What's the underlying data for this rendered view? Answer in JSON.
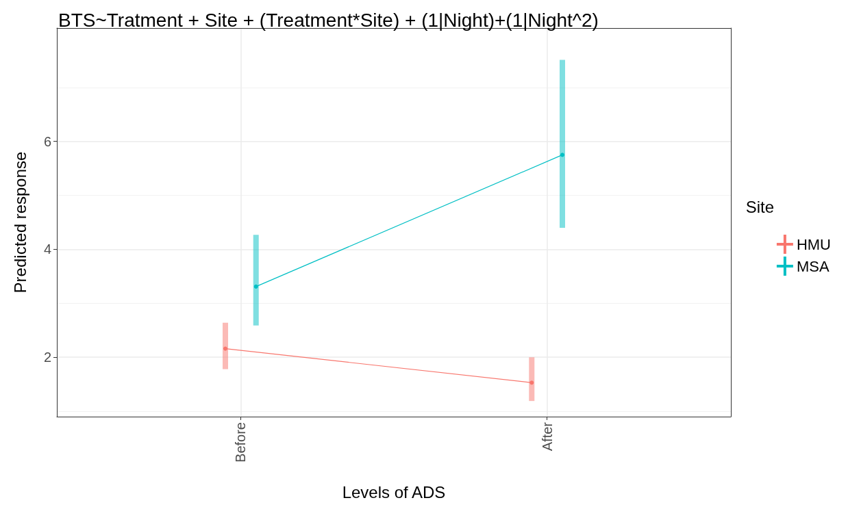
{
  "chart_data": {
    "type": "line",
    "title": "BTS~Tratment + Site + (Treatment*Site) + (1|Night)+(1|Night^2)",
    "xlabel": "Levels of ADS",
    "ylabel": "Predicted response",
    "legend_title": "Site",
    "categories": [
      "Before",
      "After"
    ],
    "series": [
      {
        "name": "HMU",
        "color": "#f8766d",
        "values": [
          2.16,
          1.53
        ],
        "errors": [
          [
            1.78,
            2.64
          ],
          [
            1.19,
            2.0
          ]
        ]
      },
      {
        "name": "MSA",
        "color": "#00bfc4",
        "values": [
          3.31,
          5.75
        ],
        "errors": [
          [
            2.59,
            4.27
          ],
          [
            4.4,
            7.51
          ]
        ]
      }
    ],
    "ylim": [
      0.9,
      8.1
    ],
    "yticks": [
      2,
      4,
      6
    ],
    "grid": true,
    "legend": "right",
    "marker": "circle"
  }
}
